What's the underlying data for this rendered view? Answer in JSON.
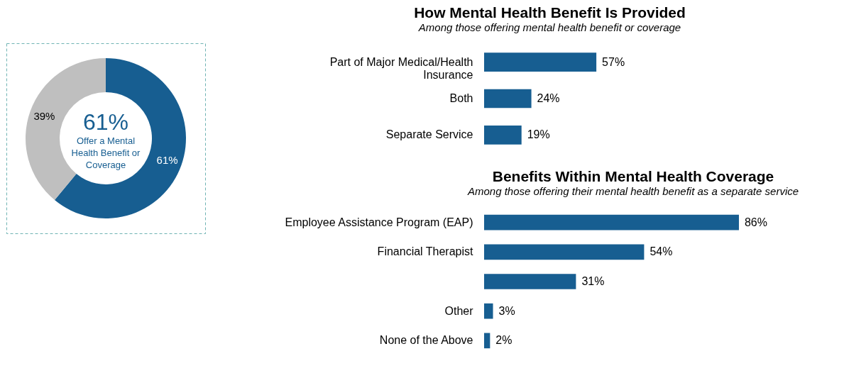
{
  "chart_data": [
    {
      "type": "donut",
      "categories": [
        null,
        null
      ],
      "values": [
        61,
        39
      ],
      "colors": [
        "#175e91",
        "#bfbfbf"
      ],
      "data_labels": true,
      "value_labels": [
        "61%",
        "39%"
      ],
      "annotations": [
        "61%",
        "Offer a Mental Health Benefit or Coverage"
      ]
    },
    {
      "type": "bar",
      "orientation": "horizontal",
      "title": "How Mental Health Benefit Is Provided",
      "subtitle": "Among those offering mental health benefit or coverage",
      "categories": [
        "Part of Major Medical/Health Insurance",
        "Both",
        "Separate Service"
      ],
      "values": [
        57,
        24,
        19
      ],
      "color": "#175e91",
      "data_labels": true,
      "value_labels": [
        "57%",
        "24%",
        "19%"
      ]
    },
    {
      "type": "bar",
      "orientation": "horizontal",
      "title": "Benefits Within Mental Health Coverage",
      "subtitle": "Among those offering their mental health benefit as a separate service",
      "categories": [
        "Employee Assistance Program (EAP)",
        "Financial Therapist",
        null,
        "Other",
        "None of the Above"
      ],
      "values": [
        86,
        54,
        31,
        3,
        2
      ],
      "color": "#175e91",
      "data_labels": true,
      "value_labels": [
        "86%",
        "54%",
        "31%",
        "3%",
        "2%"
      ]
    }
  ]
}
